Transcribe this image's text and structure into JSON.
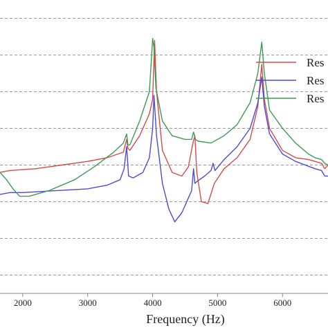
{
  "chart_data": {
    "type": "line",
    "xlabel": "Frequency (Hz)",
    "ylabel": "",
    "xlim": [
      1650,
      6700
    ],
    "ylim": [
      -75,
      5
    ],
    "x_ticks": [
      2000,
      3000,
      4000,
      5000,
      6000
    ],
    "x_tick_labels": [
      "2000",
      "3000",
      "4000",
      "5000",
      "6000"
    ],
    "y_gridlines": [
      0,
      -10,
      -20,
      -30,
      -40,
      -50,
      -60,
      -70
    ],
    "grid": true,
    "legend_placement": "right",
    "series": [
      {
        "name": "Res",
        "color": "#d94a4a",
        "x": [
          1650,
          1800,
          2200,
          2600,
          3000,
          3300,
          3550,
          3600,
          3620,
          3650,
          3800,
          3950,
          4000,
          4030,
          4060,
          4150,
          4300,
          4450,
          4550,
          4620,
          4650,
          4680,
          4750,
          4850,
          4950,
          5100,
          5300,
          5500,
          5620,
          5680,
          5720,
          5800,
          6000,
          6200,
          6400,
          6500,
          6600,
          6650,
          6700
        ],
        "y": [
          -42,
          -41.5,
          -41,
          -40,
          -39,
          -38,
          -36.5,
          -33,
          -35.5,
          -36,
          -32,
          -26,
          -22,
          -6,
          -20,
          -36,
          -42,
          -43,
          -40.5,
          -34,
          -32,
          -42,
          -50,
          -50.5,
          -45,
          -41,
          -38,
          -33,
          -24,
          -12.5,
          -22,
          -30,
          -36,
          -38,
          -38.5,
          -39,
          -39.5,
          -41,
          -40
        ]
      },
      {
        "name": "Res",
        "color": "#4a4ad9",
        "x": [
          1650,
          1800,
          2000,
          2500,
          3000,
          3300,
          3500,
          3560,
          3600,
          3630,
          3700,
          3850,
          3950,
          4000,
          4020,
          4060,
          4150,
          4250,
          4340,
          4450,
          4550,
          4600,
          4630,
          4650,
          4680,
          4800,
          4900,
          4930,
          4960,
          5100,
          5300,
          5500,
          5620,
          5680,
          5720,
          5800,
          6000,
          6200,
          6500,
          6600,
          6650,
          6700
        ],
        "y": [
          -48,
          -47.5,
          -47.5,
          -47,
          -46.5,
          -45.5,
          -44,
          -41,
          -35,
          -43,
          -43.5,
          -42,
          -38,
          -30,
          -21,
          -32,
          -45,
          -52,
          -55.5,
          -53,
          -49,
          -47,
          -41,
          -45,
          -44.5,
          -43,
          -41.5,
          -39.5,
          -41.5,
          -38.5,
          -35,
          -30,
          -23,
          -16,
          -24,
          -31.5,
          -37,
          -39,
          -41,
          -41.5,
          -43,
          -43
        ]
      },
      {
        "name": "Res",
        "color": "#3d9a53",
        "x": [
          1650,
          1750,
          1850,
          1950,
          2100,
          2400,
          2800,
          3100,
          3400,
          3550,
          3600,
          3620,
          3650,
          3800,
          3950,
          4000,
          4020,
          4050,
          4150,
          4300,
          4500,
          4600,
          4630,
          4660,
          4700,
          4900,
          5100,
          5300,
          5500,
          5620,
          5680,
          5720,
          5800,
          6000,
          6200,
          6400,
          6500,
          6600,
          6650,
          6700
        ],
        "y": [
          -42,
          -44,
          -46.5,
          -48.5,
          -48.5,
          -47,
          -44,
          -40.5,
          -36.5,
          -34,
          -31.5,
          -34.5,
          -34.5,
          -28,
          -20,
          -5.5,
          -8,
          -19,
          -28,
          -32,
          -33,
          -33,
          -31,
          -33,
          -33.5,
          -34,
          -32,
          -29,
          -23,
          -15,
          -6.5,
          -15,
          -25,
          -30,
          -34,
          -37,
          -38,
          -38.5,
          -39.5,
          -40
        ]
      }
    ]
  }
}
